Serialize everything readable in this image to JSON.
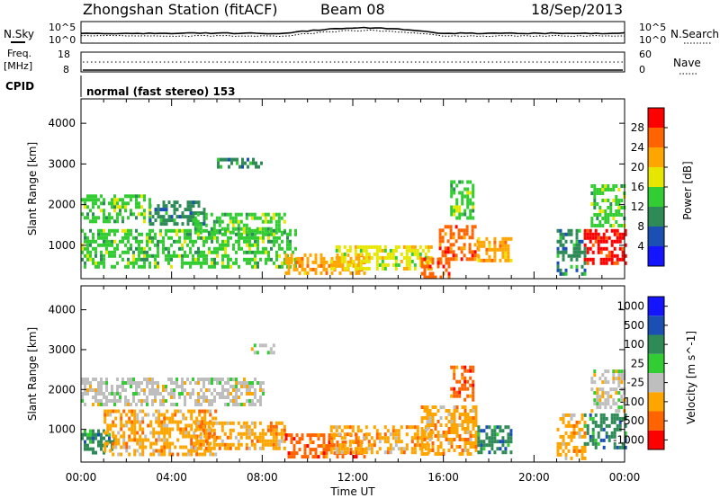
{
  "header": {
    "station": "Zhongshan Station (fitACF)",
    "beam": "Beam 08",
    "date": "18/Sep/2013"
  },
  "noise_panel": {
    "left_label": "N.Sky",
    "right_label": "N.Search",
    "left_ticks": [
      "10^5",
      "10^0"
    ],
    "right_ticks": [
      "10^5",
      "10^0"
    ]
  },
  "freq_panel": {
    "left_label_1": "Freq.",
    "left_label_2": "[MHz]",
    "right_label": "Nave",
    "left_ticks": [
      "18",
      "8"
    ],
    "right_ticks": [
      "60",
      "0"
    ]
  },
  "cpid": {
    "label": "CPID",
    "text": "normal (fast stereo) 153"
  },
  "x_axis": {
    "label": "Time UT",
    "ticks": [
      "00:00",
      "04:00",
      "08:00",
      "12:00",
      "16:00",
      "20:00",
      "00:00"
    ]
  },
  "colors": {
    "power": [
      "#1414ff",
      "#1b4fb4",
      "#2e8b57",
      "#32cd32",
      "#e6e600",
      "#ffa500",
      "#ff6400",
      "#ff0000"
    ],
    "velocity": [
      "#ff0000",
      "#ff6400",
      "#ffa500",
      "#bebebe",
      "#32cd32",
      "#2e8b57",
      "#1b4fb4",
      "#1414ff"
    ]
  },
  "chart_data": [
    {
      "type": "heatmap",
      "name": "power",
      "ylabel": "Slant Range [km]",
      "xlabel": "",
      "y_ticks": [
        "1000",
        "2000",
        "3000",
        "4000"
      ],
      "ylim": [
        180,
        4600
      ],
      "xlim_hours": [
        0,
        24
      ],
      "colorbar_label": "Power [dB]",
      "colorbar_ticks": [
        "4",
        "8",
        "12",
        "16",
        "20",
        "24",
        "28"
      ],
      "colorbar_range": [
        0,
        32
      ],
      "patches": [
        {
          "t0": 0.0,
          "t1": 3.0,
          "r0": 1600,
          "r1": 2250,
          "level": 3
        },
        {
          "t0": 0.0,
          "t1": 9.5,
          "r0": 500,
          "r1": 1400,
          "level": 3
        },
        {
          "t0": 3.0,
          "t1": 5.5,
          "r0": 1500,
          "r1": 2100,
          "level": 2
        },
        {
          "t0": 5.0,
          "t1": 9.0,
          "r0": 1300,
          "r1": 1800,
          "level": 3
        },
        {
          "t0": 9.0,
          "t1": 12.5,
          "r0": 350,
          "r1": 800,
          "level": 5
        },
        {
          "t0": 11.0,
          "t1": 15.5,
          "r0": 400,
          "r1": 1000,
          "level": 4
        },
        {
          "t0": 15.0,
          "t1": 16.2,
          "r0": 250,
          "r1": 700,
          "level": 6
        },
        {
          "t0": 15.8,
          "t1": 17.5,
          "r0": 700,
          "r1": 1500,
          "level": 6
        },
        {
          "t0": 16.3,
          "t1": 17.3,
          "r0": 1700,
          "r1": 2600,
          "level": 3
        },
        {
          "t0": 17.5,
          "t1": 19.0,
          "r0": 600,
          "r1": 1200,
          "level": 5
        },
        {
          "t0": 21.0,
          "t1": 22.2,
          "r0": 300,
          "r1": 1400,
          "level": 2
        },
        {
          "t0": 22.2,
          "t1": 24.0,
          "r0": 600,
          "r1": 1400,
          "level": 7
        },
        {
          "t0": 22.5,
          "t1": 24.0,
          "r0": 1500,
          "r1": 2500,
          "level": 3
        },
        {
          "t0": 6.0,
          "t1": 8.0,
          "r0": 2950,
          "r1": 3150,
          "level": 2
        }
      ]
    },
    {
      "type": "heatmap",
      "name": "velocity",
      "ylabel": "Slant Range [km]",
      "xlabel": "Time UT",
      "y_ticks": [
        "1000",
        "2000",
        "3000",
        "4000"
      ],
      "ylim": [
        180,
        4600
      ],
      "xlim_hours": [
        0,
        24
      ],
      "colorbar_label": "Velocity [m s^-1]",
      "colorbar_ticks": [
        "1000",
        "500",
        "100",
        "25",
        "-25",
        "-100",
        "-500",
        "-1000"
      ],
      "patches": [
        {
          "t0": 0.0,
          "t1": 8.0,
          "r0": 1600,
          "r1": 2300,
          "level": 3
        },
        {
          "t0": 0.0,
          "t1": 1.5,
          "r0": 400,
          "r1": 1000,
          "level": 5
        },
        {
          "t0": 1.0,
          "t1": 6.0,
          "r0": 400,
          "r1": 1500,
          "level": 2
        },
        {
          "t0": 5.0,
          "t1": 9.0,
          "r0": 500,
          "r1": 1200,
          "level": 2
        },
        {
          "t0": 9.0,
          "t1": 12.5,
          "r0": 350,
          "r1": 900,
          "level": 1
        },
        {
          "t0": 11.0,
          "t1": 15.5,
          "r0": 400,
          "r1": 1100,
          "level": 2
        },
        {
          "t0": 15.0,
          "t1": 17.5,
          "r0": 350,
          "r1": 1600,
          "level": 2
        },
        {
          "t0": 16.3,
          "t1": 17.3,
          "r0": 1700,
          "r1": 2600,
          "level": 1
        },
        {
          "t0": 17.5,
          "t1": 19.0,
          "r0": 400,
          "r1": 1100,
          "level": 5
        },
        {
          "t0": 21.0,
          "t1": 22.2,
          "r0": 300,
          "r1": 1400,
          "level": 2
        },
        {
          "t0": 22.2,
          "t1": 24.0,
          "r0": 500,
          "r1": 1400,
          "level": 5
        },
        {
          "t0": 22.5,
          "t1": 24.0,
          "r0": 1500,
          "r1": 2500,
          "level": 3
        },
        {
          "t0": 7.5,
          "t1": 8.5,
          "r0": 2900,
          "r1": 3150,
          "level": 3
        }
      ]
    }
  ]
}
